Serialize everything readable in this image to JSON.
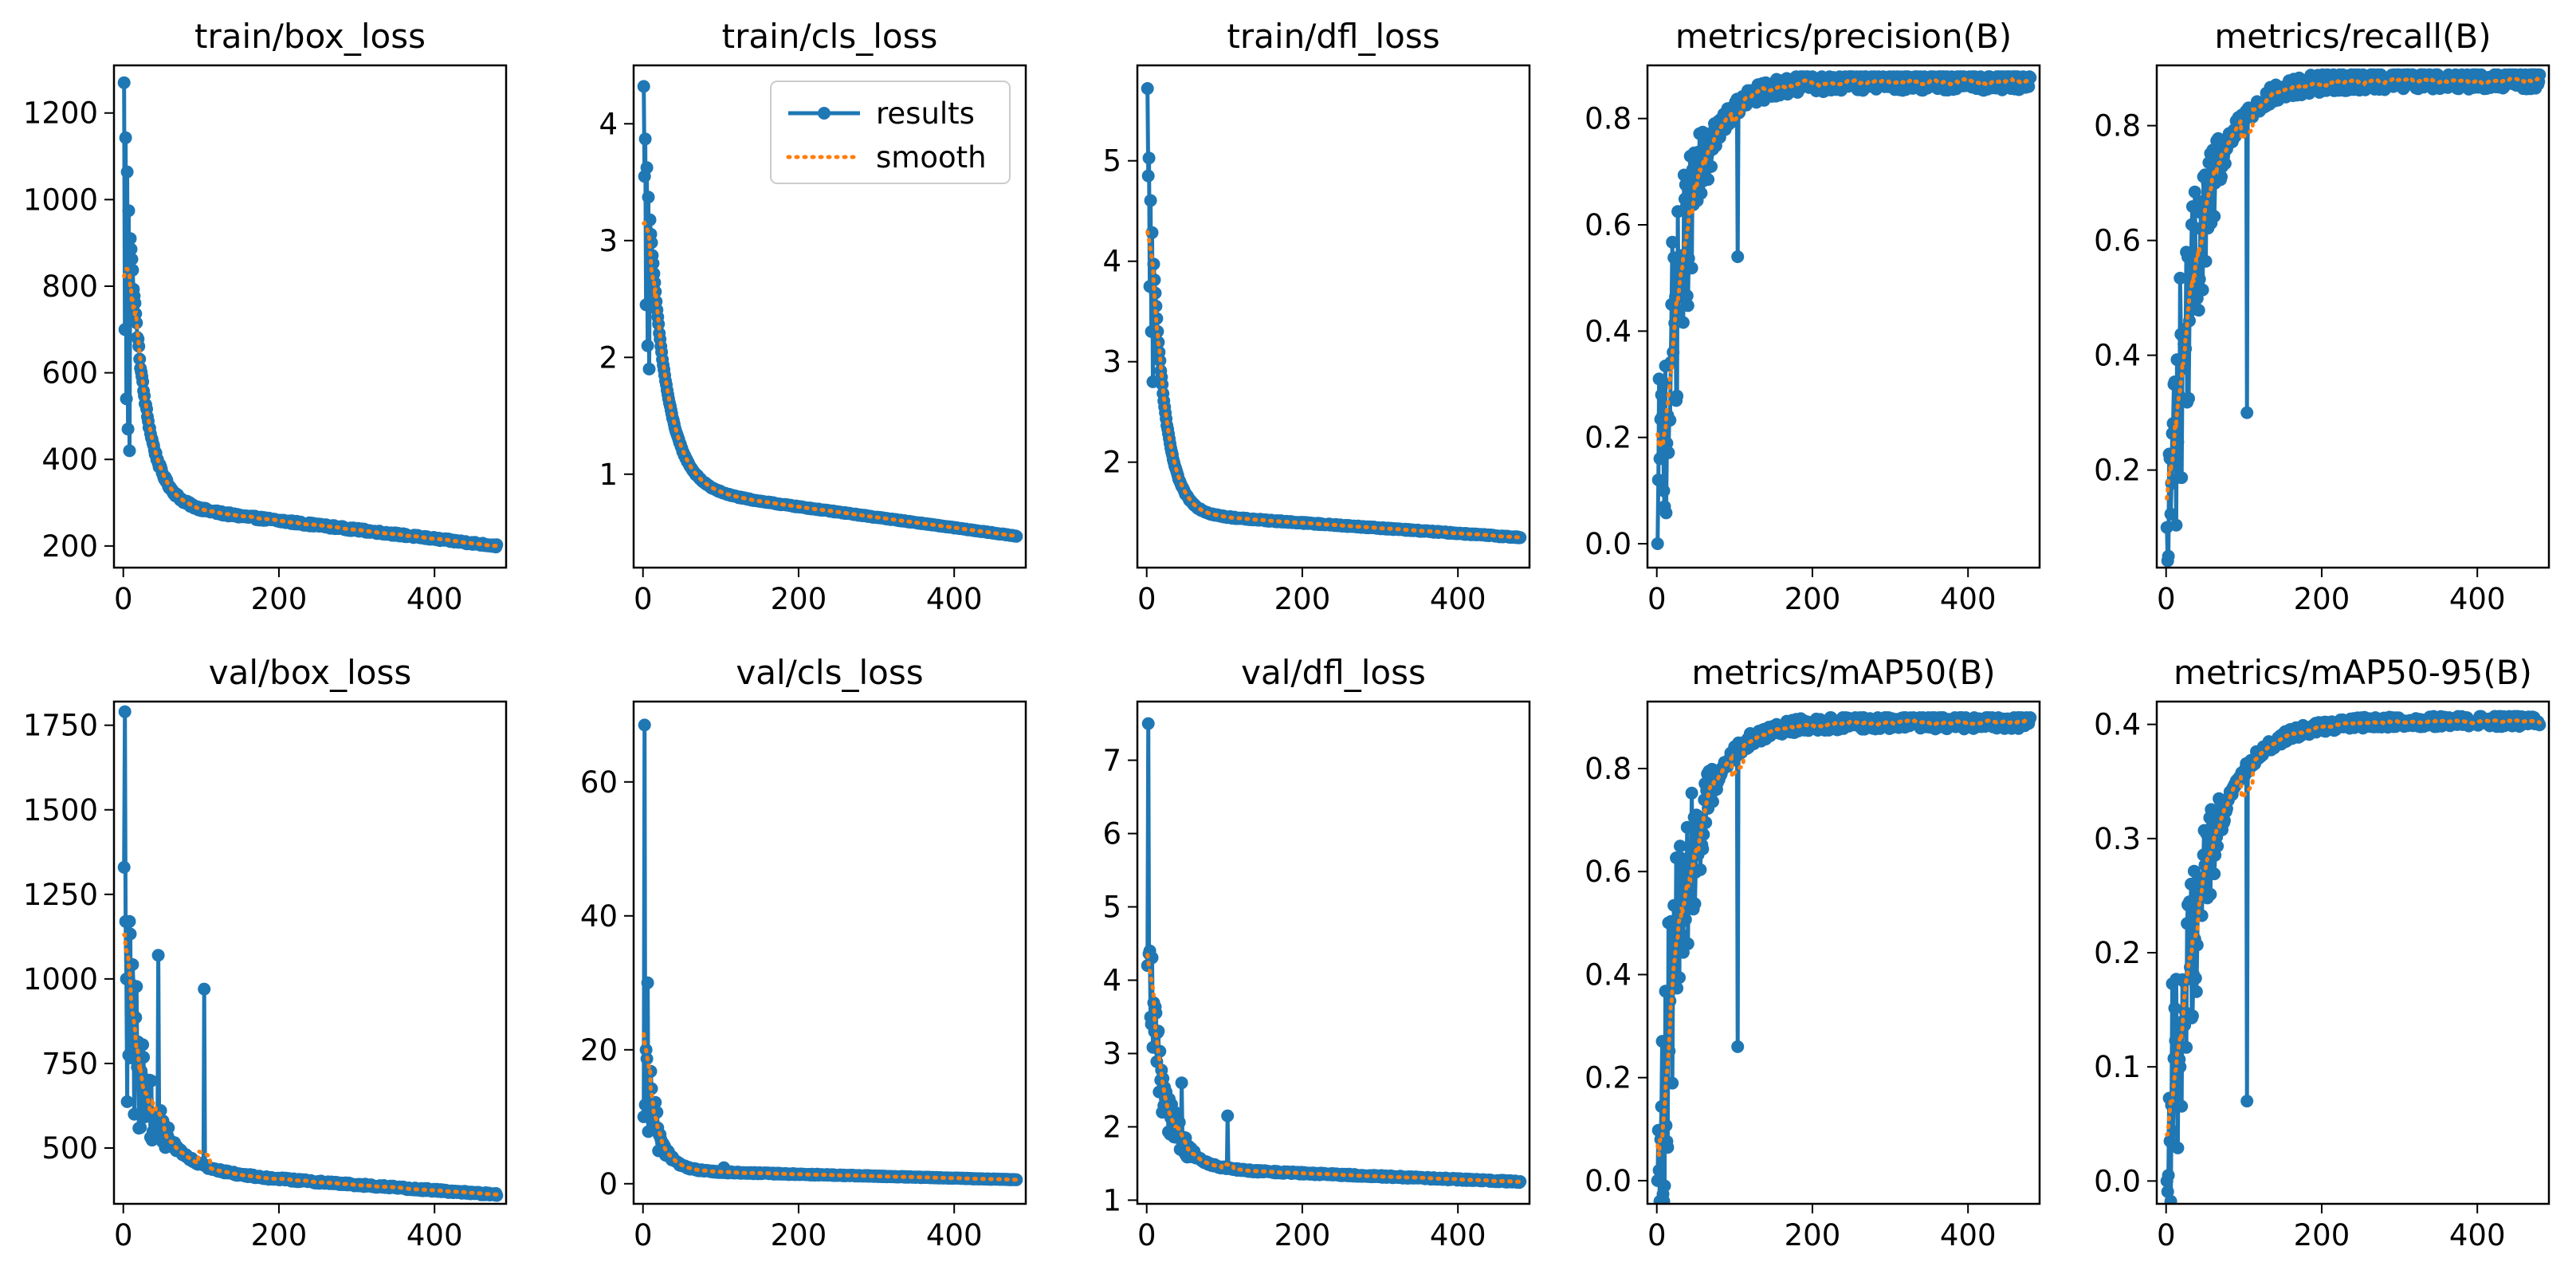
{
  "figure": {
    "background": "#ffffff",
    "series_colors": {
      "results": "#1f77b4",
      "smooth": "#ff7f0e"
    }
  },
  "legend": {
    "panel": "train/cls_loss",
    "placement": "upper-right",
    "entries": [
      {
        "label": "results",
        "style": "solid line with circle markers",
        "color": "#1f77b4"
      },
      {
        "label": "smooth",
        "style": "dotted line",
        "color": "#ff7f0e"
      }
    ]
  },
  "chart_data": [
    {
      "type": "line",
      "title": "train/box_loss",
      "xlim": [
        -12,
        492
      ],
      "ylim": [
        150,
        1310
      ],
      "xticks": [
        0,
        200,
        400
      ],
      "xtick_labels": [
        "0",
        "200",
        "400"
      ],
      "yticks": [
        200,
        400,
        600,
        800,
        1000,
        1200
      ],
      "ytick_labels": [
        "200",
        "400",
        "600",
        "800",
        "1000",
        "1200"
      ],
      "curve": {
        "kind": "decay",
        "start": 1270,
        "mid": 300,
        "end": 200,
        "k": 0.05,
        "noise": 0.015
      },
      "spikes": [
        [
          1,
          1270
        ],
        [
          2,
          700
        ],
        [
          4,
          540
        ],
        [
          6,
          470
        ],
        [
          8,
          420
        ]
      ],
      "series": [
        {
          "name": "results"
        },
        {
          "name": "smooth"
        }
      ]
    },
    {
      "type": "line",
      "title": "train/cls_loss",
      "xlim": [
        -12,
        492
      ],
      "ylim": [
        0.2,
        4.5
      ],
      "xticks": [
        0,
        200,
        400
      ],
      "xtick_labels": [
        "0",
        "200",
        "400"
      ],
      "yticks": [
        1,
        2,
        3,
        4
      ],
      "ytick_labels": [
        "1",
        "2",
        "3",
        "4"
      ],
      "curve": {
        "kind": "decay",
        "start": 4.32,
        "mid": 0.9,
        "end": 0.47,
        "k": 0.045,
        "noise": 0.006
      },
      "spikes": [
        [
          1,
          4.32
        ],
        [
          2,
          3.55
        ],
        [
          4,
          2.45
        ],
        [
          6,
          2.1
        ],
        [
          8,
          1.9
        ]
      ],
      "series": [
        {
          "name": "results"
        },
        {
          "name": "smooth"
        }
      ]
    },
    {
      "type": "line",
      "title": "train/dfl_loss",
      "xlim": [
        -12,
        492
      ],
      "ylim": [
        0.95,
        5.95
      ],
      "xticks": [
        0,
        200,
        400
      ],
      "xtick_labels": [
        "0",
        "200",
        "400"
      ],
      "yticks": [
        2,
        3,
        4,
        5
      ],
      "ytick_labels": [
        "2",
        "3",
        "4",
        "5"
      ],
      "curve": {
        "kind": "decay",
        "start": 5.72,
        "mid": 1.5,
        "end": 1.25,
        "k": 0.06,
        "noise": 0.005
      },
      "spikes": [
        [
          1,
          5.72
        ],
        [
          2,
          4.85
        ],
        [
          4,
          3.75
        ],
        [
          6,
          3.3
        ],
        [
          8,
          2.8
        ]
      ],
      "series": [
        {
          "name": "results"
        },
        {
          "name": "smooth"
        }
      ]
    },
    {
      "type": "line",
      "title": "metrics/precision(B)",
      "xlim": [
        -12,
        492
      ],
      "ylim": [
        -0.045,
        0.9
      ],
      "xticks": [
        0,
        200,
        400
      ],
      "xtick_labels": [
        "0",
        "200",
        "400"
      ],
      "yticks": [
        0.0,
        0.2,
        0.4,
        0.6,
        0.8
      ],
      "ytick_labels": [
        "0.0",
        "0.2",
        "0.4",
        "0.6",
        "0.8"
      ],
      "curve": {
        "kind": "growth",
        "start": 0.0,
        "end": 0.87,
        "k": 0.028,
        "noise": 0.02,
        "early_noise": 0.28,
        "early_until": 80
      },
      "spikes": [
        [
          1,
          0.0
        ],
        [
          2,
          0.12
        ],
        [
          3,
          0.31
        ],
        [
          4,
          0.16
        ],
        [
          6,
          0.28
        ],
        [
          104,
          0.54
        ]
      ],
      "series": [
        {
          "name": "results"
        },
        {
          "name": "smooth"
        }
      ]
    },
    {
      "type": "line",
      "title": "metrics/recall(B)",
      "xlim": [
        -12,
        492
      ],
      "ylim": [
        0.03,
        0.905
      ],
      "xticks": [
        0,
        200,
        400
      ],
      "xtick_labels": [
        "0",
        "200",
        "400"
      ],
      "yticks": [
        0.2,
        0.4,
        0.6,
        0.8
      ],
      "ytick_labels": [
        "0.2",
        "0.4",
        "0.6",
        "0.8"
      ],
      "curve": {
        "kind": "growth",
        "start": 0.05,
        "end": 0.88,
        "k": 0.025,
        "noise": 0.02,
        "early_noise": 0.28,
        "early_until": 80
      },
      "spikes": [
        [
          1,
          0.1
        ],
        [
          3,
          0.05
        ],
        [
          5,
          0.22
        ],
        [
          104,
          0.3
        ]
      ],
      "series": [
        {
          "name": "results"
        },
        {
          "name": "smooth"
        }
      ]
    },
    {
      "type": "line",
      "title": "val/box_loss",
      "xlim": [
        -12,
        492
      ],
      "ylim": [
        335,
        1820
      ],
      "xticks": [
        0,
        200,
        400
      ],
      "xtick_labels": [
        "0",
        "200",
        "400"
      ],
      "yticks": [
        500,
        750,
        1000,
        1250,
        1500,
        1750
      ],
      "ytick_labels": [
        "500",
        "750",
        "1000",
        "1250",
        "1500",
        "1750"
      ],
      "curve": {
        "kind": "decay",
        "start": 1000,
        "mid": 440,
        "end": 362,
        "k": 0.03,
        "noise": 0.01,
        "early_noise": 0.35,
        "early_until": 70
      },
      "spikes": [
        [
          1,
          1330
        ],
        [
          2,
          1790
        ],
        [
          4,
          1000
        ],
        [
          8,
          1170
        ],
        [
          45,
          1070
        ],
        [
          104,
          970
        ]
      ],
      "series": [
        {
          "name": "results"
        },
        {
          "name": "smooth"
        }
      ]
    },
    {
      "type": "line",
      "title": "val/cls_loss",
      "xlim": [
        -12,
        492
      ],
      "ylim": [
        -3,
        72
      ],
      "xticks": [
        0,
        200,
        400
      ],
      "xtick_labels": [
        "0",
        "200",
        "400"
      ],
      "yticks": [
        0,
        20,
        40,
        60
      ],
      "ytick_labels": [
        "0",
        "20",
        "40",
        "60"
      ],
      "curve": {
        "kind": "decay",
        "start": 20,
        "mid": 2.0,
        "end": 0.6,
        "k": 0.06,
        "noise": 0.06,
        "early_noise": 0.6,
        "early_until": 40
      },
      "spikes": [
        [
          1,
          10
        ],
        [
          2,
          68.5
        ],
        [
          4,
          20
        ],
        [
          6,
          30
        ],
        [
          8,
          12
        ],
        [
          104,
          2.4
        ]
      ],
      "series": [
        {
          "name": "results"
        },
        {
          "name": "smooth"
        }
      ]
    },
    {
      "type": "line",
      "title": "val/dfl_loss",
      "xlim": [
        -12,
        492
      ],
      "ylim": [
        0.95,
        7.8
      ],
      "xticks": [
        0,
        200,
        400
      ],
      "xtick_labels": [
        "0",
        "200",
        "400"
      ],
      "yticks": [
        1,
        2,
        3,
        4,
        5,
        6,
        7
      ],
      "ytick_labels": [
        "1",
        "2",
        "3",
        "4",
        "5",
        "6",
        "7"
      ],
      "curve": {
        "kind": "decay",
        "start": 4.4,
        "mid": 1.45,
        "end": 1.25,
        "k": 0.045,
        "noise": 0.01,
        "early_noise": 0.25,
        "early_until": 70
      },
      "spikes": [
        [
          1,
          4.2
        ],
        [
          2,
          7.5
        ],
        [
          4,
          4.4
        ],
        [
          6,
          3.4
        ],
        [
          45,
          2.6
        ],
        [
          104,
          2.15
        ]
      ],
      "series": [
        {
          "name": "results"
        },
        {
          "name": "smooth"
        }
      ]
    },
    {
      "type": "line",
      "title": "metrics/mAP50(B)",
      "xlim": [
        -12,
        492
      ],
      "ylim": [
        -0.045,
        0.93
      ],
      "xticks": [
        0,
        200,
        400
      ],
      "xtick_labels": [
        "0",
        "200",
        "400"
      ],
      "yticks": [
        0.0,
        0.2,
        0.4,
        0.6,
        0.8
      ],
      "ytick_labels": [
        "0.0",
        "0.2",
        "0.4",
        "0.6",
        "0.8"
      ],
      "curve": {
        "kind": "growth",
        "start": 0.0,
        "end": 0.89,
        "k": 0.027,
        "noise": 0.015,
        "early_noise": 0.3,
        "early_until": 80
      },
      "spikes": [
        [
          1,
          0.0
        ],
        [
          3,
          0.02
        ],
        [
          5,
          0.08
        ],
        [
          104,
          0.26
        ]
      ],
      "series": [
        {
          "name": "results"
        },
        {
          "name": "smooth"
        }
      ]
    },
    {
      "type": "line",
      "title": "metrics/mAP50-95(B)",
      "xlim": [
        -12,
        492
      ],
      "ylim": [
        -0.02,
        0.42
      ],
      "xticks": [
        0,
        200,
        400
      ],
      "xtick_labels": [
        "0",
        "200",
        "400"
      ],
      "yticks": [
        0.0,
        0.1,
        0.2,
        0.3,
        0.4
      ],
      "ytick_labels": [
        "0.0",
        "0.1",
        "0.2",
        "0.3",
        "0.4"
      ],
      "curve": {
        "kind": "growth",
        "start": 0.0,
        "end": 0.403,
        "k": 0.022,
        "noise": 0.012,
        "early_noise": 0.3,
        "early_until": 80
      },
      "spikes": [
        [
          1,
          0.0
        ],
        [
          3,
          0.005
        ],
        [
          5,
          0.035
        ],
        [
          104,
          0.07
        ]
      ],
      "series": [
        {
          "name": "results"
        },
        {
          "name": "smooth"
        }
      ]
    }
  ]
}
